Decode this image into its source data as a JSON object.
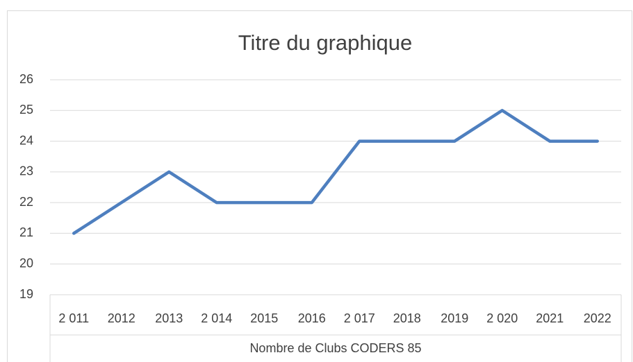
{
  "chart_data": {
    "type": "line",
    "title": "Titre du graphique",
    "categories": [
      "2 011",
      "2012",
      "2013",
      "2 014",
      "2015",
      "2016",
      "2 017",
      "2018",
      "2019",
      "2 020",
      "2021",
      "2022"
    ],
    "values": [
      21,
      22,
      23,
      22,
      22,
      22,
      24,
      24,
      24,
      25,
      24,
      24
    ],
    "color": "#4e7fbf",
    "x_label": "Nombre de Clubs CODERS 85",
    "ylim": [
      19,
      26
    ],
    "yticks": [
      19,
      20,
      21,
      22,
      23,
      24,
      25,
      26
    ],
    "grid": true
  }
}
